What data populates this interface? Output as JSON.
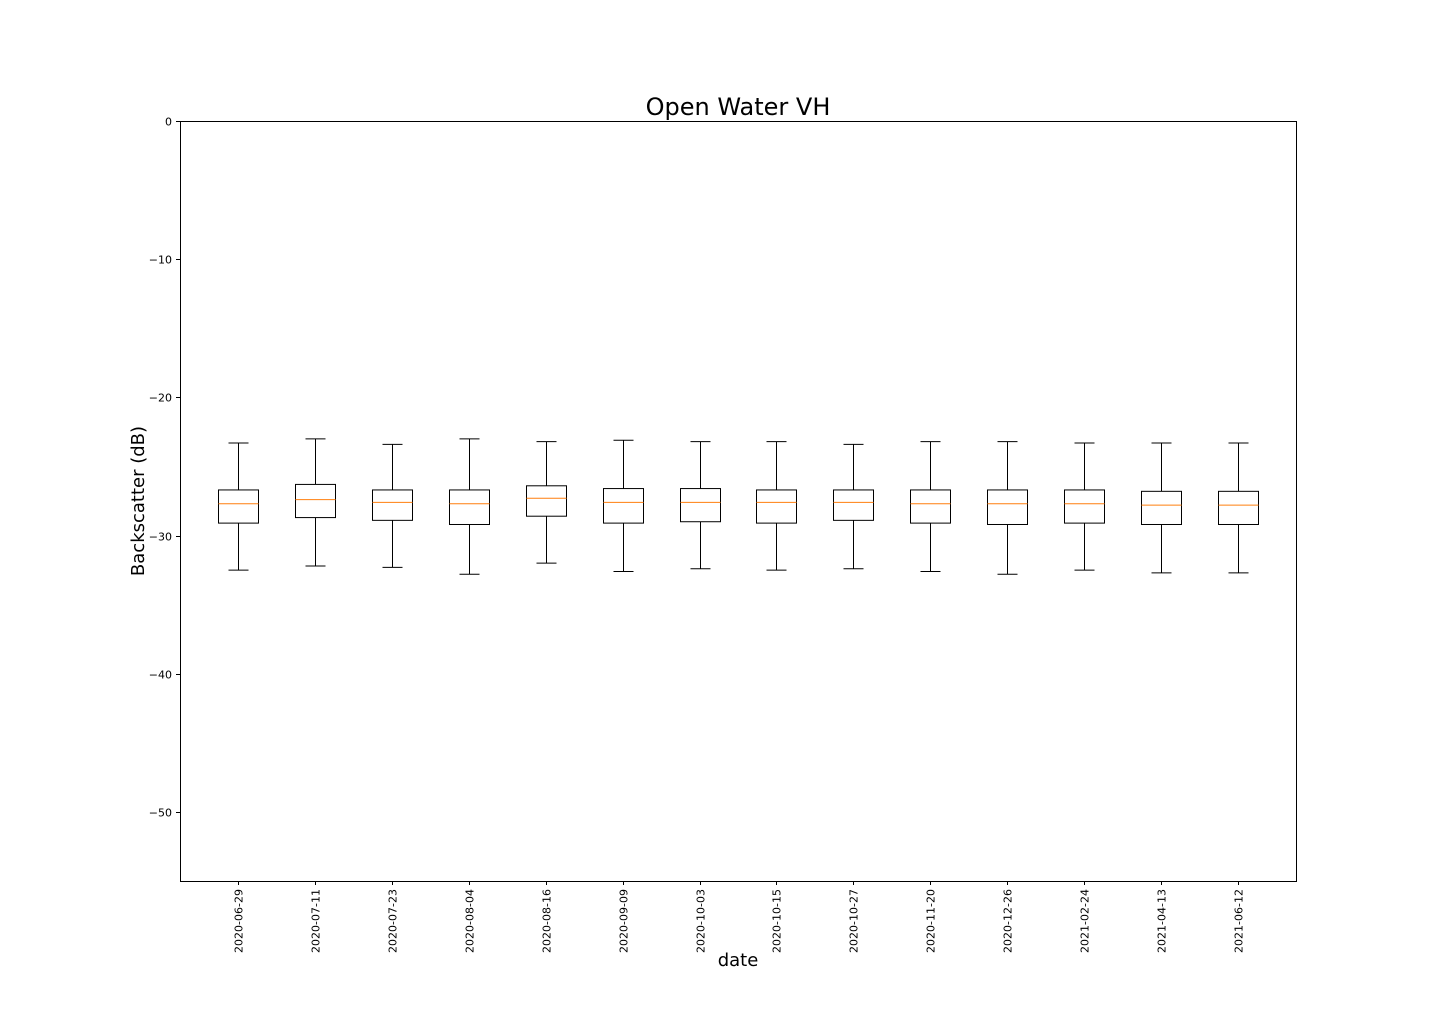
{
  "chart_data": {
    "type": "box",
    "title": "Open Water VH",
    "xlabel": "date",
    "ylabel": "Backscatter (dB)",
    "ylim": [
      -55,
      0
    ],
    "yticks": [
      0,
      -10,
      -20,
      -30,
      -40,
      -50
    ],
    "ytick_labels": [
      "0",
      "−10",
      "−20",
      "−30",
      "−40",
      "−50"
    ],
    "grid": false,
    "categories": [
      "2020-06-29",
      "2020-07-11",
      "2020-07-23",
      "2020-08-04",
      "2020-08-16",
      "2020-09-09",
      "2020-10-03",
      "2020-10-15",
      "2020-10-27",
      "2020-11-20",
      "2020-12-26",
      "2021-02-24",
      "2021-04-13",
      "2021-06-12"
    ],
    "boxes": [
      {
        "whislo": -32.5,
        "q1": -29.1,
        "med": -27.7,
        "q3": -26.7,
        "whishi": -23.3
      },
      {
        "whislo": -32.2,
        "q1": -28.7,
        "med": -27.4,
        "q3": -26.3,
        "whishi": -23.0
      },
      {
        "whislo": -32.3,
        "q1": -28.9,
        "med": -27.6,
        "q3": -26.7,
        "whishi": -23.4
      },
      {
        "whislo": -32.8,
        "q1": -29.2,
        "med": -27.7,
        "q3": -26.7,
        "whishi": -23.0
      },
      {
        "whislo": -32.0,
        "q1": -28.6,
        "med": -27.3,
        "q3": -26.4,
        "whishi": -23.2
      },
      {
        "whislo": -32.6,
        "q1": -29.1,
        "med": -27.6,
        "q3": -26.6,
        "whishi": -23.1
      },
      {
        "whislo": -32.4,
        "q1": -29.0,
        "med": -27.6,
        "q3": -26.6,
        "whishi": -23.2
      },
      {
        "whislo": -32.5,
        "q1": -29.1,
        "med": -27.6,
        "q3": -26.7,
        "whishi": -23.2
      },
      {
        "whislo": -32.4,
        "q1": -28.9,
        "med": -27.6,
        "q3": -26.7,
        "whishi": -23.4
      },
      {
        "whislo": -32.6,
        "q1": -29.1,
        "med": -27.7,
        "q3": -26.7,
        "whishi": -23.2
      },
      {
        "whislo": -32.8,
        "q1": -29.2,
        "med": -27.7,
        "q3": -26.7,
        "whishi": -23.2
      },
      {
        "whislo": -32.5,
        "q1": -29.1,
        "med": -27.7,
        "q3": -26.7,
        "whishi": -23.3
      },
      {
        "whislo": -32.7,
        "q1": -29.2,
        "med": -27.8,
        "q3": -26.8,
        "whishi": -23.3
      },
      {
        "whislo": -32.7,
        "q1": -29.2,
        "med": -27.8,
        "q3": -26.8,
        "whishi": -23.3
      }
    ],
    "colors": {
      "box": "#000000",
      "median": "#ff7f0e",
      "frame": "#000000"
    }
  }
}
